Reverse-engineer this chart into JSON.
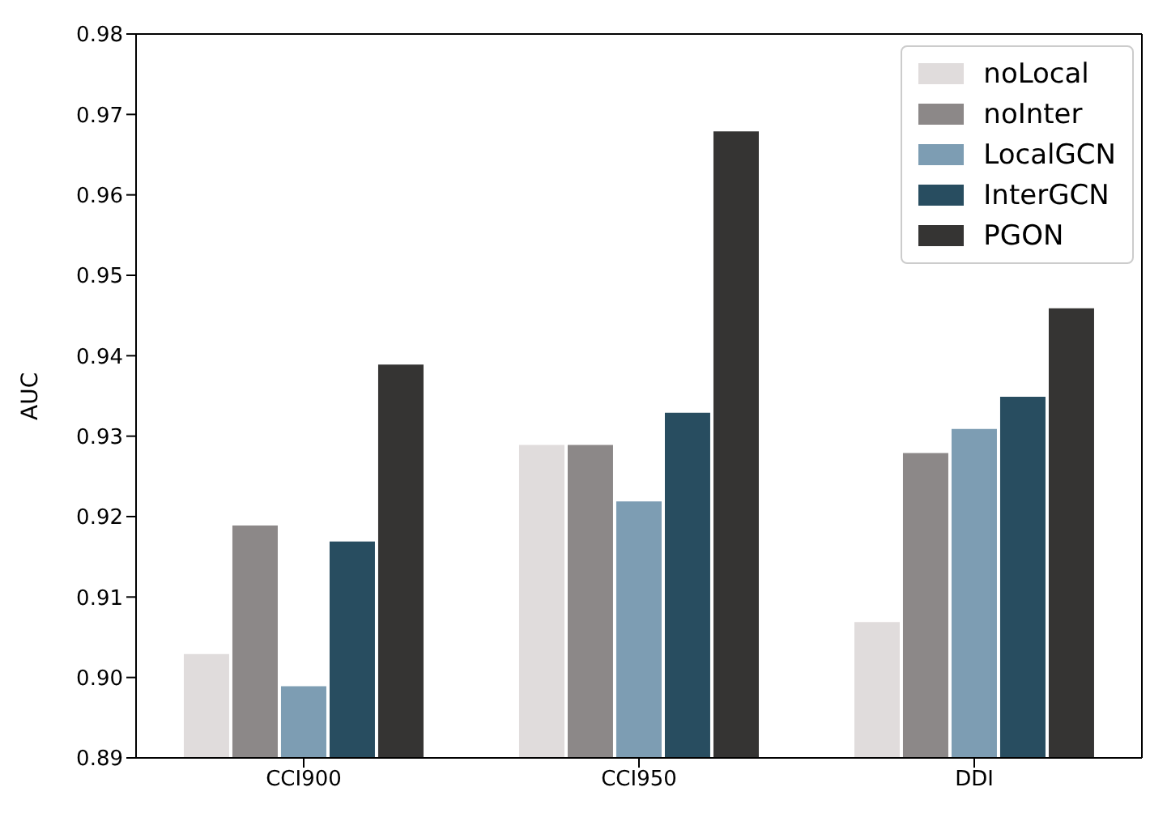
{
  "chart_data": {
    "type": "bar",
    "ylabel": "AUC",
    "categories": [
      "CCI900",
      "CCI950",
      "DDI"
    ],
    "series": [
      {
        "name": "noLocal",
        "color": "#e0dcdc",
        "values": [
          0.903,
          0.929,
          0.907
        ]
      },
      {
        "name": "noInter",
        "color": "#8c8888",
        "values": [
          0.919,
          0.929,
          0.928
        ]
      },
      {
        "name": "LocalGCN",
        "color": "#7d9db3",
        "values": [
          0.899,
          0.922,
          0.931
        ]
      },
      {
        "name": "InterGCN",
        "color": "#284d60",
        "values": [
          0.917,
          0.933,
          0.935
        ]
      },
      {
        "name": "PGON",
        "color": "#353433",
        "values": [
          0.939,
          0.968,
          0.946
        ]
      }
    ],
    "ylim": [
      0.89,
      0.98
    ],
    "yticks": [
      0.89,
      {
        "value": 0.9,
        "label": "0.90"
      },
      0.91,
      0.92,
      0.93,
      0.94,
      0.95,
      0.96,
      0.97,
      0.98
    ],
    "grid": false,
    "legend": "top right"
  }
}
